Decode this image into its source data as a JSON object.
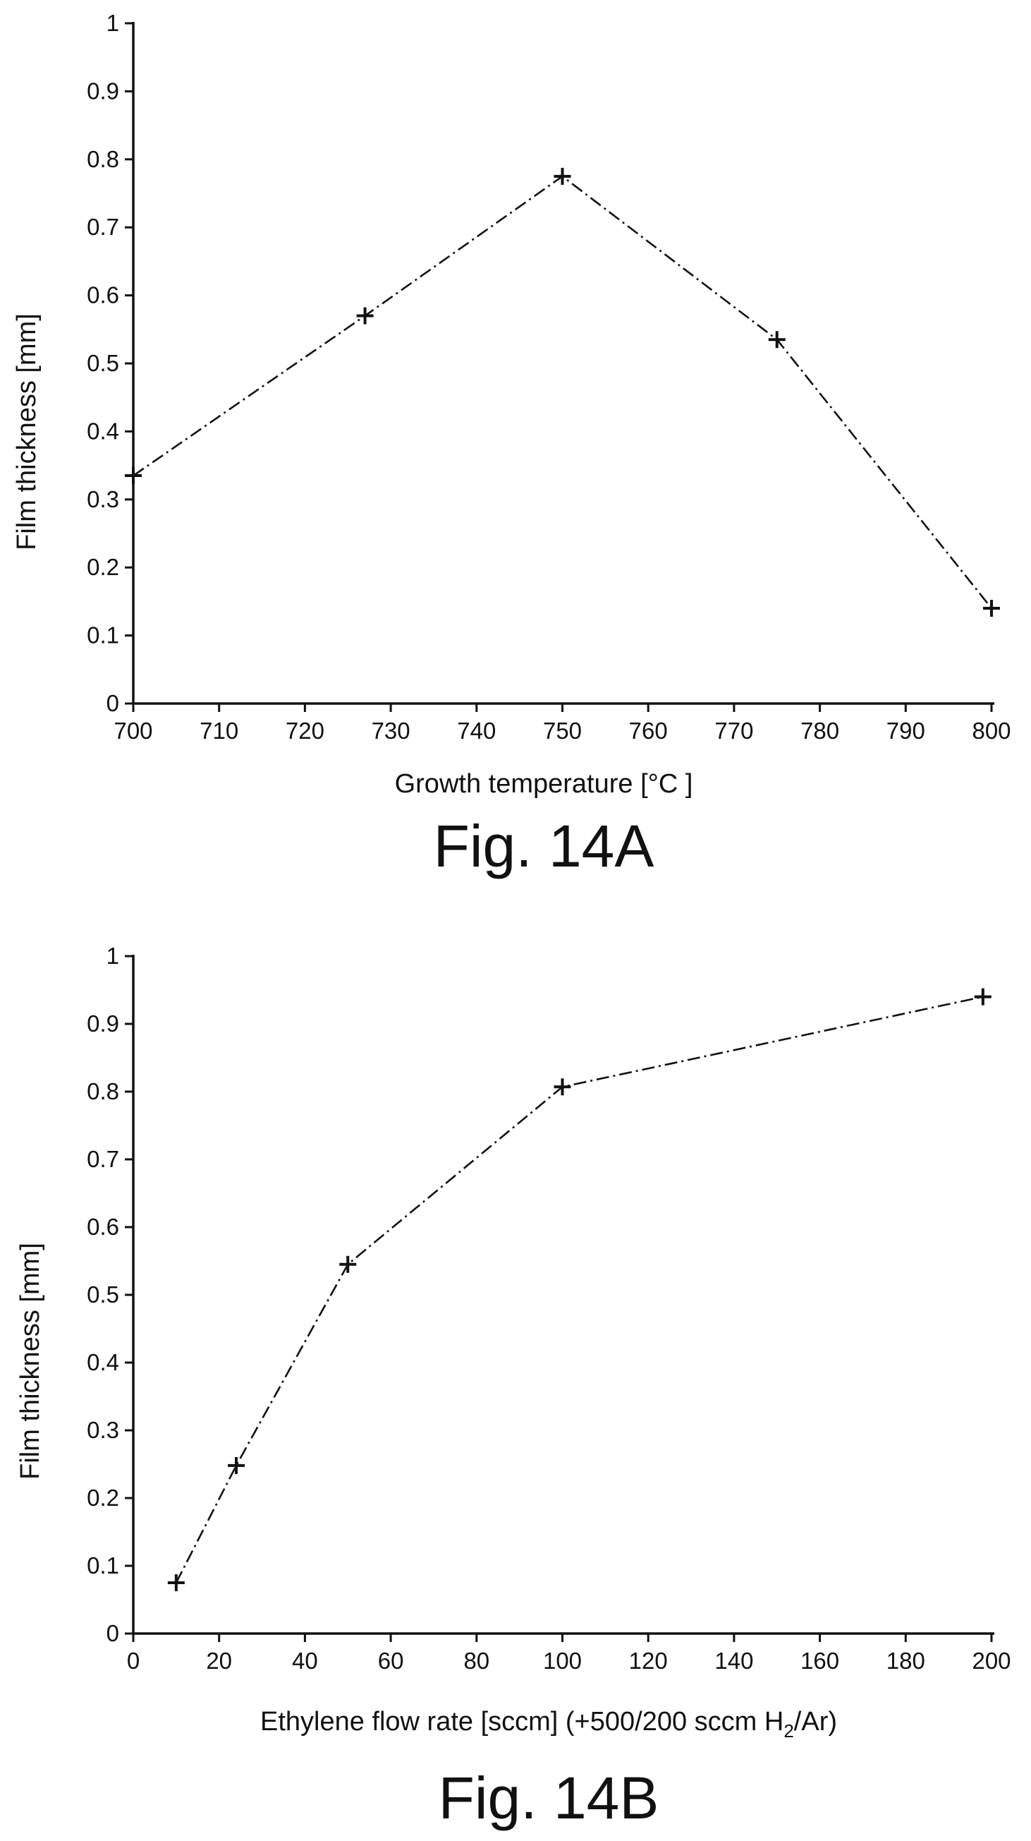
{
  "chart_data": [
    {
      "type": "line",
      "figure_label": "Fig. 14A",
      "xlabel": "Growth temperature [°C ]",
      "ylabel": "Film thickness [mm]",
      "xlim": [
        700,
        800
      ],
      "ylim": [
        0,
        1
      ],
      "xticks": [
        "700",
        "710",
        "720",
        "730",
        "740",
        "750",
        "760",
        "770",
        "780",
        "790",
        "800"
      ],
      "yticks": [
        "0",
        "0.1",
        "0.2",
        "0.3",
        "0.4",
        "0.5",
        "0.6",
        "0.7",
        "0.8",
        "0.9",
        "1"
      ],
      "marker": "plus",
      "line_style": "dash-dot",
      "grid": false,
      "x": [
        700,
        727,
        750,
        775,
        800
      ],
      "y": [
        0.335,
        0.57,
        0.775,
        0.535,
        0.14
      ]
    },
    {
      "type": "line",
      "figure_label": "Fig. 14B",
      "xlabel": "Ethylene flow rate [sccm] (+500/200 sccm H",
      "xlabel_sub": "2",
      "xlabel_suffix": "/Ar)",
      "ylabel": "Film thickness [mm]",
      "xlim": [
        0,
        200
      ],
      "ylim": [
        0,
        1
      ],
      "xticks": [
        "0",
        "20",
        "40",
        "60",
        "80",
        "100",
        "120",
        "140",
        "160",
        "180",
        "200"
      ],
      "yticks": [
        "0",
        "0.1",
        "0.2",
        "0.3",
        "0.4",
        "0.5",
        "0.6",
        "0.7",
        "0.8",
        "0.9",
        "1"
      ],
      "marker": "plus",
      "line_style": "dash-dot",
      "grid": false,
      "x": [
        10,
        24,
        50,
        100,
        198
      ],
      "y": [
        0.075,
        0.248,
        0.545,
        0.807,
        0.94
      ]
    }
  ]
}
